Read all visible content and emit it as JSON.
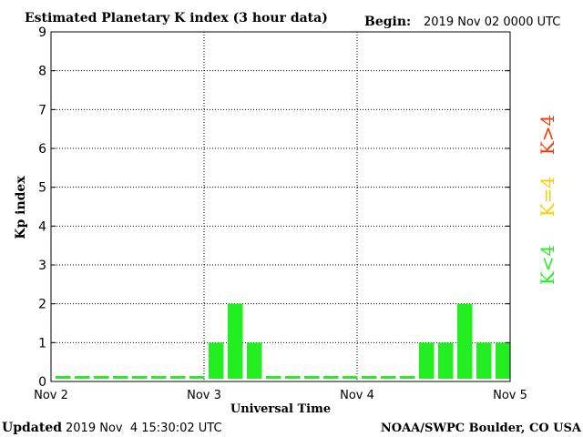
{
  "header": {
    "title": "Estimated Planetary K index (3 hour data)",
    "begin_label": "Begin:",
    "begin_value": "2019 Nov 02 0000 UTC"
  },
  "footer": {
    "updated_label": "Updated",
    "updated_value": "2019 Nov  4 15:30:02 UTC",
    "credit": "NOAA/SWPC Boulder, CO USA"
  },
  "legend": {
    "high": "K>4",
    "equal": "K=4",
    "low": "K<4",
    "colors": {
      "low": "#22ee22",
      "equal": "#ffcc00",
      "high": "#ff3300"
    }
  },
  "chart_data": {
    "type": "bar",
    "title": "Estimated Planetary K index (3 hour data)",
    "xlabel": "Universal Time",
    "ylabel": "Kp index",
    "ylim": [
      0,
      9
    ],
    "yticks": [
      "0",
      "1",
      "2",
      "3",
      "4",
      "5",
      "6",
      "7",
      "8",
      "9"
    ],
    "xticks": [
      "Nov 2",
      "Nov 3",
      "Nov 4",
      "Nov 5"
    ],
    "bin_hours": 3,
    "bar_color": "#22ee22",
    "grid": true,
    "values": [
      0,
      0,
      0,
      0,
      0,
      0,
      0,
      0,
      1,
      2,
      1,
      0,
      0,
      0,
      0,
      0,
      0,
      0,
      0,
      1,
      1,
      2,
      1,
      1
    ]
  }
}
